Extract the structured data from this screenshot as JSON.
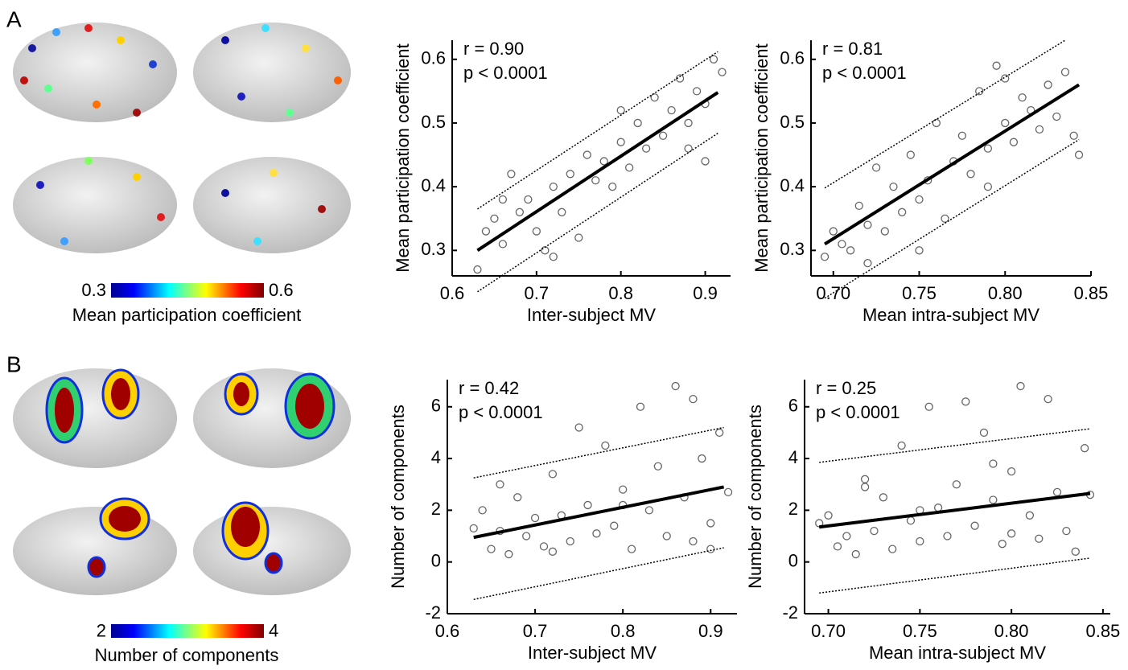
{
  "panel_labels": [
    "A",
    "B"
  ],
  "chart_data": [
    {
      "type": "colorbar",
      "label": "Mean participation coefficient",
      "xlim": [
        0.3,
        0.6
      ],
      "xticks": [
        0.3,
        0.6
      ]
    },
    {
      "type": "scatter",
      "x_label": "Inter-subject MV",
      "y_label": "Mean participation coefficient",
      "annotations": [
        "r = 0.90",
        "p < 0.0001"
      ],
      "xlim": [
        0.6,
        0.93
      ],
      "xticks": [
        0.6,
        0.7,
        0.8,
        0.9
      ],
      "ylim": [
        0.26,
        0.63
      ],
      "yticks": [
        0.3,
        0.4,
        0.5,
        0.6
      ],
      "x": [
        0.63,
        0.64,
        0.65,
        0.66,
        0.67,
        0.68,
        0.69,
        0.7,
        0.71,
        0.72,
        0.73,
        0.74,
        0.75,
        0.76,
        0.77,
        0.78,
        0.79,
        0.8,
        0.81,
        0.82,
        0.83,
        0.84,
        0.85,
        0.86,
        0.87,
        0.88,
        0.89,
        0.9,
        0.91,
        0.92,
        0.66,
        0.72,
        0.8,
        0.88,
        0.9
      ],
      "y": [
        0.27,
        0.33,
        0.35,
        0.31,
        0.42,
        0.36,
        0.38,
        0.33,
        0.3,
        0.4,
        0.36,
        0.42,
        0.32,
        0.45,
        0.41,
        0.44,
        0.4,
        0.47,
        0.43,
        0.5,
        0.46,
        0.54,
        0.48,
        0.52,
        0.57,
        0.5,
        0.55,
        0.53,
        0.6,
        0.58,
        0.38,
        0.29,
        0.52,
        0.46,
        0.44
      ],
      "fit_line": {
        "x": [
          0.63,
          0.915
        ],
        "y": [
          0.3,
          0.548
        ]
      },
      "upper_band": {
        "x": [
          0.63,
          0.915
        ],
        "y": [
          0.365,
          0.612
        ]
      },
      "lower_band": {
        "x": [
          0.63,
          0.915
        ],
        "y": [
          0.235,
          0.484
        ]
      }
    },
    {
      "type": "scatter",
      "x_label": "Mean intra-subject MV",
      "y_label": "Mean participation coefficient",
      "annotations": [
        "r = 0.81",
        "p < 0.0001"
      ],
      "xlim": [
        0.687,
        0.85
      ],
      "xticks": [
        {
          "value": 0.7,
          "label": "0.70"
        },
        {
          "value": 0.75,
          "label": "0.75"
        },
        {
          "value": 0.8,
          "label": "0.80"
        },
        {
          "value": 0.85,
          "label": "0.85"
        }
      ],
      "ylim": [
        0.26,
        0.63
      ],
      "yticks": [
        0.3,
        0.4,
        0.5,
        0.6
      ],
      "x": [
        0.695,
        0.7,
        0.705,
        0.71,
        0.715,
        0.72,
        0.725,
        0.73,
        0.735,
        0.74,
        0.745,
        0.75,
        0.755,
        0.76,
        0.765,
        0.77,
        0.775,
        0.78,
        0.785,
        0.79,
        0.795,
        0.8,
        0.805,
        0.81,
        0.815,
        0.82,
        0.825,
        0.83,
        0.835,
        0.84,
        0.72,
        0.75,
        0.79,
        0.8,
        0.843
      ],
      "y": [
        0.29,
        0.33,
        0.31,
        0.3,
        0.37,
        0.34,
        0.43,
        0.33,
        0.4,
        0.36,
        0.45,
        0.38,
        0.41,
        0.5,
        0.35,
        0.44,
        0.48,
        0.42,
        0.55,
        0.46,
        0.59,
        0.5,
        0.47,
        0.54,
        0.52,
        0.49,
        0.56,
        0.51,
        0.58,
        0.48,
        0.28,
        0.3,
        0.4,
        0.57,
        0.45
      ],
      "fit_line": {
        "x": [
          0.695,
          0.843
        ],
        "y": [
          0.31,
          0.56
        ]
      },
      "upper_band": {
        "x": [
          0.695,
          0.835
        ],
        "y": [
          0.398,
          0.63
        ]
      },
      "lower_band": {
        "x": [
          0.695,
          0.843
        ],
        "y": [
          0.225,
          0.474
        ]
      }
    },
    {
      "type": "colorbar",
      "label": "Number of components",
      "xlim": [
        2,
        4
      ],
      "xticks": [
        2,
        4
      ]
    },
    {
      "type": "scatter",
      "x_label": "Inter-subject MV",
      "y_label": "Number of components",
      "annotations": [
        "r = 0.42",
        "p < 0.0001"
      ],
      "xlim": [
        0.6,
        0.93
      ],
      "xticks": [
        0.6,
        0.7,
        0.8,
        0.9
      ],
      "ylim": [
        -2,
        7.05
      ],
      "yticks": [
        -2,
        0,
        2,
        4,
        6
      ],
      "x": [
        0.63,
        0.64,
        0.65,
        0.66,
        0.67,
        0.68,
        0.69,
        0.7,
        0.71,
        0.72,
        0.73,
        0.74,
        0.75,
        0.76,
        0.77,
        0.78,
        0.79,
        0.8,
        0.81,
        0.82,
        0.83,
        0.84,
        0.85,
        0.86,
        0.87,
        0.88,
        0.89,
        0.9,
        0.91,
        0.92,
        0.66,
        0.72,
        0.8,
        0.88,
        0.9
      ],
      "y": [
        1.3,
        2.0,
        0.5,
        1.2,
        0.3,
        2.5,
        1.0,
        1.7,
        0.6,
        3.4,
        1.8,
        0.8,
        5.2,
        2.2,
        1.1,
        4.5,
        1.4,
        2.8,
        0.5,
        6.0,
        2.0,
        3.7,
        1.0,
        6.8,
        2.5,
        0.8,
        4.0,
        1.5,
        5.0,
        2.7,
        3.0,
        0.4,
        2.2,
        6.3,
        0.5
      ],
      "fit_line": {
        "x": [
          0.63,
          0.915
        ],
        "y": [
          0.95,
          2.9
        ]
      },
      "upper_band": {
        "x": [
          0.63,
          0.915
        ],
        "y": [
          3.25,
          5.2
        ]
      },
      "lower_band": {
        "x": [
          0.63,
          0.915
        ],
        "y": [
          -1.45,
          0.55
        ]
      }
    },
    {
      "type": "scatter",
      "x_label": "Mean intra-subject MV",
      "y_label": "Number of components",
      "annotations": [
        "r = 0.25",
        "p < 0.0001"
      ],
      "xlim": [
        0.687,
        0.854
      ],
      "xticks": [
        {
          "value": 0.7,
          "label": "0.70"
        },
        {
          "value": 0.75,
          "label": "0.75"
        },
        {
          "value": 0.8,
          "label": "0.80"
        },
        {
          "value": 0.85,
          "label": "0.85"
        }
      ],
      "ylim": [
        -2,
        7.05
      ],
      "yticks": [
        -2,
        0,
        2,
        4,
        6
      ],
      "x": [
        0.695,
        0.7,
        0.705,
        0.71,
        0.715,
        0.72,
        0.725,
        0.73,
        0.735,
        0.74,
        0.745,
        0.75,
        0.755,
        0.76,
        0.765,
        0.77,
        0.775,
        0.78,
        0.785,
        0.79,
        0.795,
        0.8,
        0.805,
        0.81,
        0.815,
        0.82,
        0.825,
        0.83,
        0.835,
        0.84,
        0.72,
        0.75,
        0.79,
        0.8,
        0.843
      ],
      "y": [
        1.5,
        1.8,
        0.6,
        1.0,
        0.3,
        3.2,
        1.2,
        2.5,
        0.5,
        4.5,
        1.6,
        0.8,
        6.0,
        2.1,
        1.0,
        3.0,
        6.2,
        1.4,
        5.0,
        2.4,
        0.7,
        3.5,
        6.8,
        1.8,
        0.9,
        6.3,
        2.7,
        1.2,
        0.4,
        4.4,
        2.9,
        2.0,
        3.8,
        1.1,
        2.6
      ],
      "fit_line": {
        "x": [
          0.695,
          0.843
        ],
        "y": [
          1.35,
          2.65
        ]
      },
      "upper_band": {
        "x": [
          0.695,
          0.843
        ],
        "y": [
          3.85,
          5.15
        ]
      },
      "lower_band": {
        "x": [
          0.695,
          0.843
        ],
        "y": [
          -1.2,
          0.15
        ]
      }
    }
  ]
}
